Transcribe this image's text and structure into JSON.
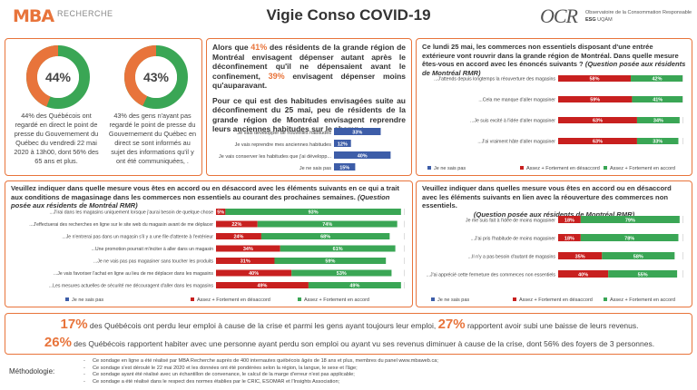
{
  "header": {
    "logo_mba": "MBA",
    "logo_mba_sub": "RECHERCHE",
    "title": "Vigie Conso COVID-19",
    "logo_ocr": "OCR",
    "logo_ocr_sub1": "Observatoire de la Consommation Responsable",
    "logo_ocr_sub2": "ESG",
    "logo_ocr_sub3": "UQÀM"
  },
  "donuts": [
    {
      "label": "44%",
      "value": 44,
      "caption": "44% des Québécois ont regardé en direct le point de presse du Gouvernement du Québec du vendredi 22 mai 2020 à 13h00, dont 56% des 65 ans et plus."
    },
    {
      "label": "43%",
      "value": 43,
      "caption": "43% des gens n'ayant pas regardé le point de presse du Gouvernement du Québec en direct se sont informés au sujet des informations qu'il y ont été communiquées, ."
    }
  ],
  "textbox": {
    "p1a": "Alors que ",
    "p1b": "41%",
    "p1c": " des résidents de la grande région de Montréal envisagent dépenser autant après le déconfinement qu'il ne dépensaient avant le confinement, ",
    "p1d": "39%",
    "p1e": " envisagent dépenser moins qu'auparavant.",
    "p2": "Pour ce qui est des habitudes envisagées suite au déconfinement du 25 mai, peu de résidents de la grande région de Montréal envisagent reprendre leurs anciennes habitudes sur le champ :"
  },
  "q1": {
    "title": "Ce lundi 25 mai, les commerces non essentiels disposant d'une entrée extérieure vont rouvrir dans la grande région de Montréal. Dans quelle mesure êtes-vous en accord avec les énoncés suivants ?",
    "title_note": "(Question posée aux résidents de Montréal RMR)"
  },
  "q2": {
    "title": "Veuillez indiquer dans quelle mesure vous êtes en accord ou en désaccord avec les éléments suivants en ce qui a trait aux conditions de magasinage dans les commerces non essentiels au courant des prochaines semaines.",
    "title_note": "(Question posée aux résidents de Montréal RMR)"
  },
  "q3": {
    "title": "Veuillez indiquer dans quelles mesure vous êtes en accord ou en désaccord avec les éléments suivants en lien avec la réouverture des commerces non essentiels.",
    "title_note": "(Question posée aux résidents de Montréal RMR)"
  },
  "legend": {
    "dk": "Je ne sais pas",
    "disagree": "Assez + Fortement en désaccord",
    "agree": "Assez + Fortement en accord"
  },
  "bottom": {
    "l1a": "17%",
    "l1b": " des Québécois ont perdu leur emploi à cause de la crise et parmi les gens ayant toujours leur emploi, ",
    "l1c": "27%",
    "l1d": " rapportent avoir subi une baisse de leurs revenus.",
    "l2a": "26%",
    "l2b": " des Québécois rapportent habiter avec une personne ayant perdu son emploi ou ayant vu ses revenus diminuer à cause de la crise, dont 56% des foyers de 3 personnes."
  },
  "methodology": {
    "label": "Méthodologie:",
    "items": [
      "Ce sondage en ligne a été réalisé par MBA Recherche auprès de 400 internautes québécois âgés de 18 ans et plus, membres du panel www.mbaweb.ca;",
      "Ce sondage s'est déroulé le 22 mai 2020 et les données ont été pondérées selon la région, la langue, le sexe et l'âge;",
      "Ce sondage ayant été réalisé avec un échantillon de convenance, le calcul de la marge d'erreur n'est pas applicable;",
      "Ce sondage a été réalisé dans le respect des normes établies par le CRIC, ESOMAR et l'Insights Association;"
    ]
  },
  "colors": {
    "orange": "#e8743b",
    "green": "#3aa655",
    "red": "#c8201f",
    "blue": "#3d5da8",
    "donut_rest": "#3aa655"
  },
  "chart_data": [
    {
      "type": "pie",
      "title": "",
      "values": [
        44,
        56
      ],
      "labels": [
        "44%",
        ""
      ]
    },
    {
      "type": "pie",
      "title": "",
      "values": [
        43,
        57
      ],
      "labels": [
        "43%",
        ""
      ]
    },
    {
      "type": "bar",
      "orientation": "horizontal",
      "categories": [
        "Je vais développer de nouvelles habitudes",
        "Je vais reprendre mes anciennes habitudes",
        "Je vais conserver les habitudes que j'ai développ...",
        "Je ne sais pas"
      ],
      "values": [
        33,
        12,
        40,
        15
      ],
      "labels": [
        "33%",
        "12%",
        "40%",
        "15%"
      ]
    },
    {
      "type": "bar",
      "orientation": "horizontal",
      "stacked": true,
      "categories": [
        "...J'attends depuis longtemps la réouverture des magasins",
        "...Cela me manque d'aller magasiner",
        "...Je suis excité à l'idée d'aller magasiner",
        "...J'ai vraiment hâte d'aller magasiner"
      ],
      "series": [
        {
          "name": "Je ne sais pas",
          "values": [
            0,
            0,
            0,
            0
          ]
        },
        {
          "name": "Assez + Fortement en désaccord",
          "values": [
            58,
            59,
            63,
            63
          ]
        },
        {
          "name": "Assez + Fortement en accord",
          "values": [
            42,
            41,
            34,
            33
          ]
        }
      ]
    },
    {
      "type": "bar",
      "orientation": "horizontal",
      "stacked": true,
      "categories": [
        "...J'irai dans les magasins uniquement lorsque j'aurai besoin de quelque chose",
        "...J'effectuerai des recherches en ligne sur le site web du magasin avant de me déplacer",
        "...Je n'entrerai pas dans un magasin s'il y a une file d'attente à l'extérieur",
        "...Une promotion pourrait m'inciter à aller dans un magasin",
        "...Je ne vais pas pas magasiner sans toucher les produits",
        "...Je vais favoriser l'achat en ligne au lieu de me déplacer dans les magasins",
        "...Les mesures actuelles de sécurité me découragent d'aller dans les magasins"
      ],
      "series": [
        {
          "name": "Je ne sais pas",
          "values": [
            0,
            0,
            0,
            0,
            0,
            0,
            0
          ]
        },
        {
          "name": "Assez + Fortement en désaccord",
          "values": [
            5,
            22,
            24,
            34,
            31,
            40,
            49
          ]
        },
        {
          "name": "Assez + Fortement en accord",
          "values": [
            93,
            74,
            68,
            61,
            59,
            53,
            49
          ]
        }
      ]
    },
    {
      "type": "bar",
      "orientation": "horizontal",
      "stacked": true,
      "categories": [
        "Je me suis fait à l'idée de moins magasiner",
        "...J'ai pris l'habitude de moins magasiner",
        "...Il n'y a pas besoin d'autant de magasins",
        "...J'ai apprécié cette fermeture des commerces non essentiels"
      ],
      "series": [
        {
          "name": "Je ne sais pas",
          "values": [
            0,
            0,
            0,
            0
          ]
        },
        {
          "name": "Assez + Fortement en désaccord",
          "values": [
            18,
            18,
            35,
            40
          ]
        },
        {
          "name": "Assez + Fortement en accord",
          "values": [
            79,
            78,
            58,
            55
          ]
        }
      ]
    }
  ]
}
